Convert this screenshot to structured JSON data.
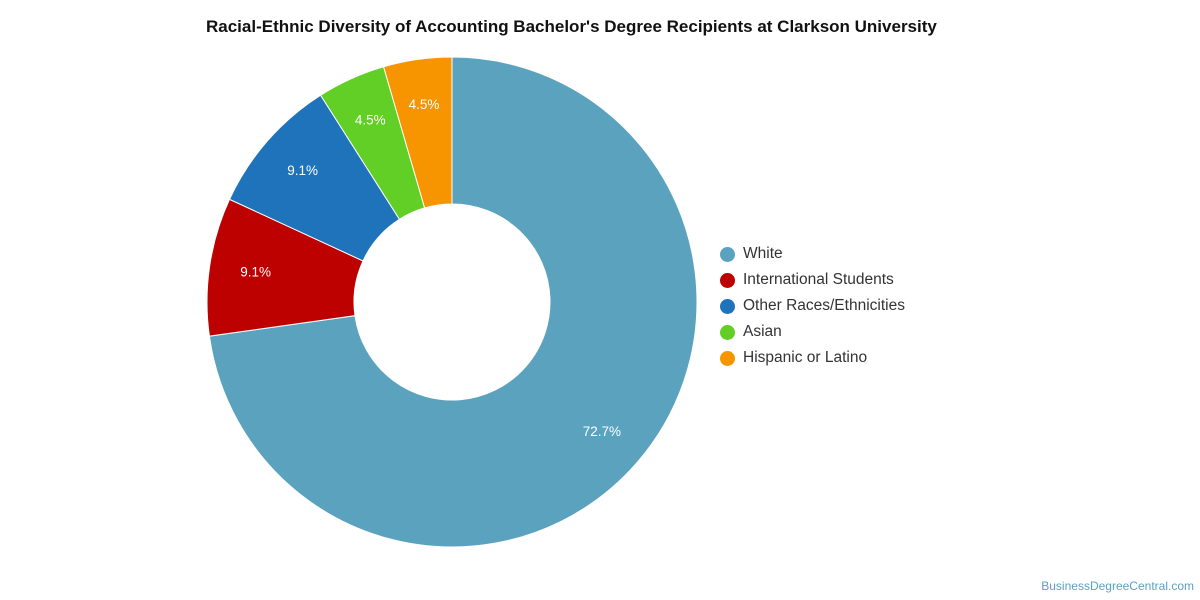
{
  "chart_data": {
    "type": "pie",
    "title": "Racial-Ethnic Diversity of Accounting Bachelor's Degree Recipients at Clarkson University",
    "donut": true,
    "legend_position": "right",
    "slices": [
      {
        "label": "White",
        "value": 72.7,
        "value_label": "72.7%",
        "color": "#5ba2bf"
      },
      {
        "label": "International Students",
        "value": 9.1,
        "value_label": "9.1%",
        "color": "#bd0100"
      },
      {
        "label": "Other Races/Ethnicities",
        "value": 9.1,
        "value_label": "9.1%",
        "color": "#1f73ba"
      },
      {
        "label": "Asian",
        "value": 4.5,
        "value_label": "4.5%",
        "color": "#62cf26"
      },
      {
        "label": "Hispanic or Latino",
        "value": 4.5,
        "value_label": "4.5%",
        "color": "#f79500"
      }
    ]
  },
  "watermark": "BusinessDegreeCentral.com"
}
